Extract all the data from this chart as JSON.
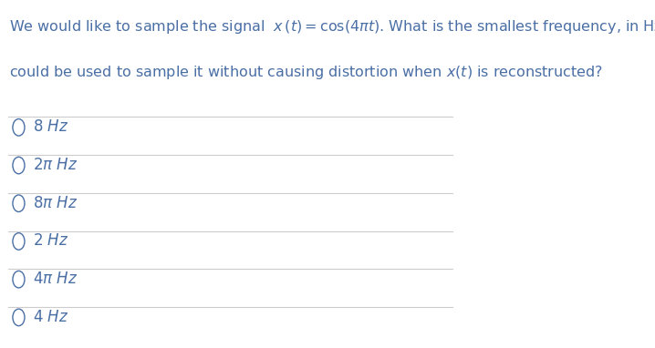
{
  "bg_color": "#ffffff",
  "text_color": "#4a6fa5",
  "line_color": "#cccccc",
  "question_fontsize": 11.5,
  "option_fontsize": 12,
  "fig_width": 7.18,
  "fig_height": 3.82,
  "dpi": 100
}
